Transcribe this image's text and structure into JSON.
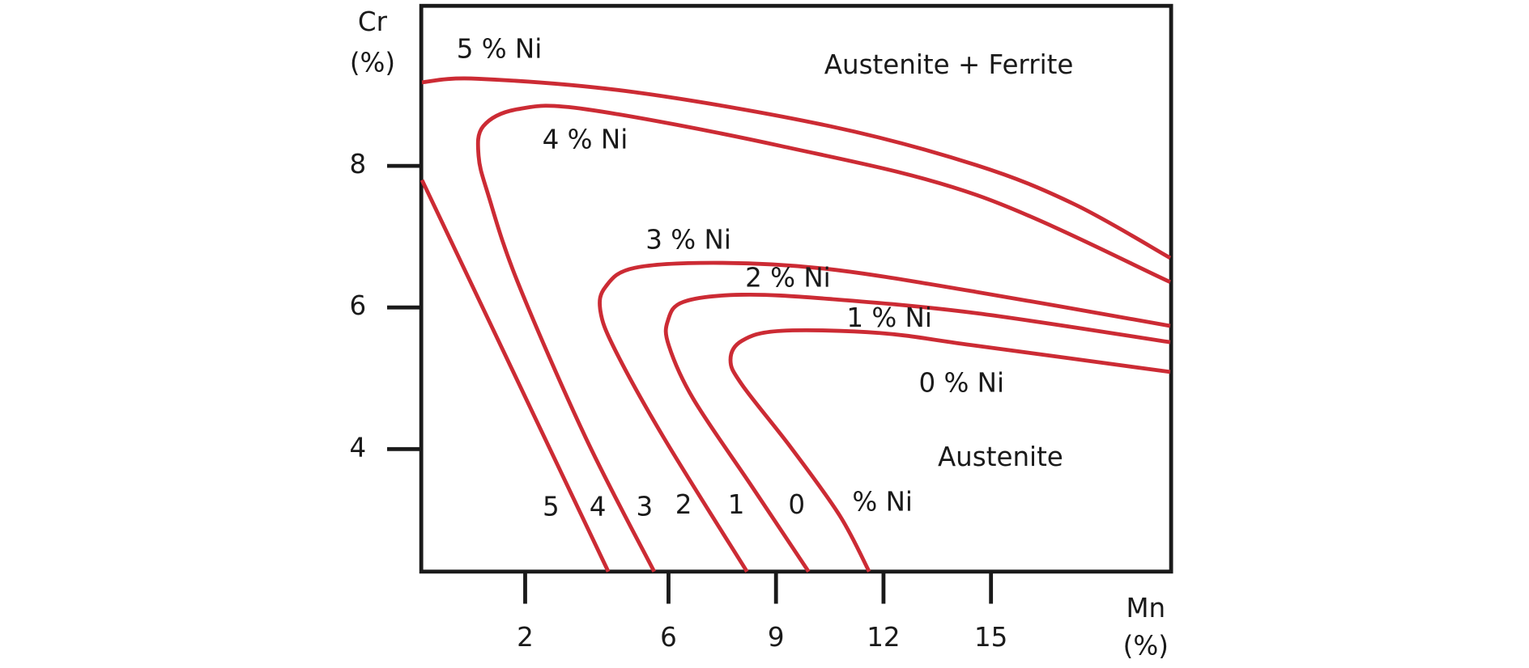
{
  "chart_data": {
    "type": "line",
    "ylabel": [
      "Cr",
      "(%)"
    ],
    "xlabel": [
      "Mn",
      "(%)"
    ],
    "xlim": [
      -0.9,
      20.0
    ],
    "ylim": [
      2.27,
      10.26
    ],
    "xticks": [
      2,
      6,
      9,
      12,
      15
    ],
    "yticks": [
      4,
      6,
      8
    ],
    "color": "#cc2b34",
    "series": [
      {
        "name": "5 % Ni",
        "x": [
          -0.88,
          0.7,
          5.06,
          10.51,
          14.59,
          17.32,
          20.0,
          null,
          -0.88,
          4.32
        ],
        "values": [
          9.18,
          9.23,
          9.04,
          8.56,
          8.01,
          7.46,
          6.7,
          null,
          7.8,
          2.27
        ]
      },
      {
        "name": "4 % Ni",
        "x": [
          20.0,
          14.59,
          9.14,
          3.69,
          1.79,
          0.83,
          0.7,
          0.97,
          1.79,
          3.69,
          5.6
        ],
        "values": [
          6.36,
          7.59,
          8.28,
          8.8,
          8.8,
          8.56,
          8.14,
          7.59,
          6.36,
          4.16,
          2.27
        ]
      },
      {
        "name": "3 % Ni",
        "x": [
          20.0,
          14.59,
          10.51,
          7.51,
          5.06,
          4.24,
          4.1,
          4.51,
          5.87,
          8.19
        ],
        "values": [
          5.74,
          6.22,
          6.54,
          6.63,
          6.56,
          6.29,
          5.95,
          5.4,
          4.16,
          2.27
        ]
      },
      {
        "name": "2 % Ni",
        "x": [
          20.0,
          14.59,
          10.51,
          8.05,
          6.42,
          5.98,
          6.01,
          6.69,
          8.33,
          9.91
        ],
        "values": [
          5.51,
          5.92,
          6.12,
          6.18,
          6.08,
          5.81,
          5.46,
          4.71,
          3.47,
          2.27
        ]
      },
      {
        "name": "1 % Ni",
        "x": [
          20.0,
          14.59,
          11.89,
          9.14,
          8.05,
          7.73,
          8.05,
          9.42,
          10.78,
          11.6
        ],
        "values": [
          5.09,
          5.46,
          5.64,
          5.67,
          5.53,
          5.26,
          4.91,
          4.02,
          3.06,
          2.27
        ]
      }
    ],
    "annotations": [
      "Austenite + Ferrite",
      "0 % Ni",
      "Austenite",
      "5",
      "4",
      "3",
      "2",
      "1",
      "0",
      "% Ni"
    ]
  }
}
